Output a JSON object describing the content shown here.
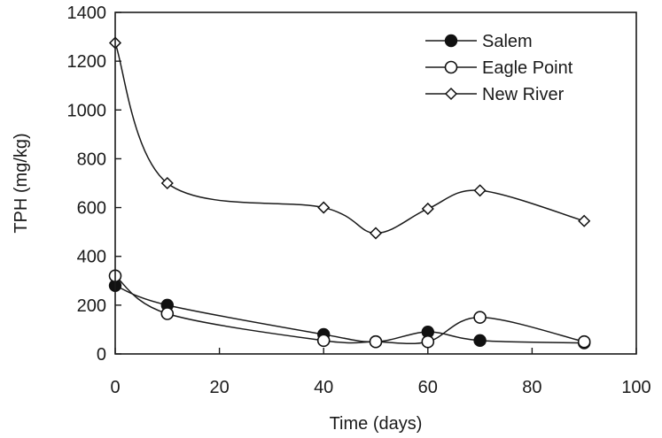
{
  "chart_data": {
    "type": "line",
    "title": "",
    "xlabel": "Time (days)",
    "ylabel": "TPH (mg/kg)",
    "xlim": [
      0,
      100
    ],
    "ylim": [
      0,
      1400
    ],
    "x_ticks": [
      0,
      20,
      40,
      60,
      80,
      100
    ],
    "y_ticks": [
      0,
      200,
      400,
      600,
      800,
      1000,
      1200,
      1400
    ],
    "grid": false,
    "legend_position": "top-right",
    "series": [
      {
        "name": "Salem",
        "marker": "filled-circle",
        "x": [
          0,
          10,
          40,
          50,
          60,
          70,
          90
        ],
        "y": [
          280,
          200,
          80,
          50,
          90,
          55,
          45
        ]
      },
      {
        "name": "Eagle Point",
        "marker": "open-circle",
        "x": [
          0,
          10,
          40,
          50,
          60,
          70,
          90
        ],
        "y": [
          320,
          165,
          55,
          50,
          50,
          150,
          50
        ]
      },
      {
        "name": "New River",
        "marker": "open-diamond",
        "x": [
          0,
          10,
          40,
          50,
          60,
          70,
          90
        ],
        "y": [
          1275,
          700,
          600,
          495,
          595,
          670,
          545
        ]
      }
    ]
  }
}
